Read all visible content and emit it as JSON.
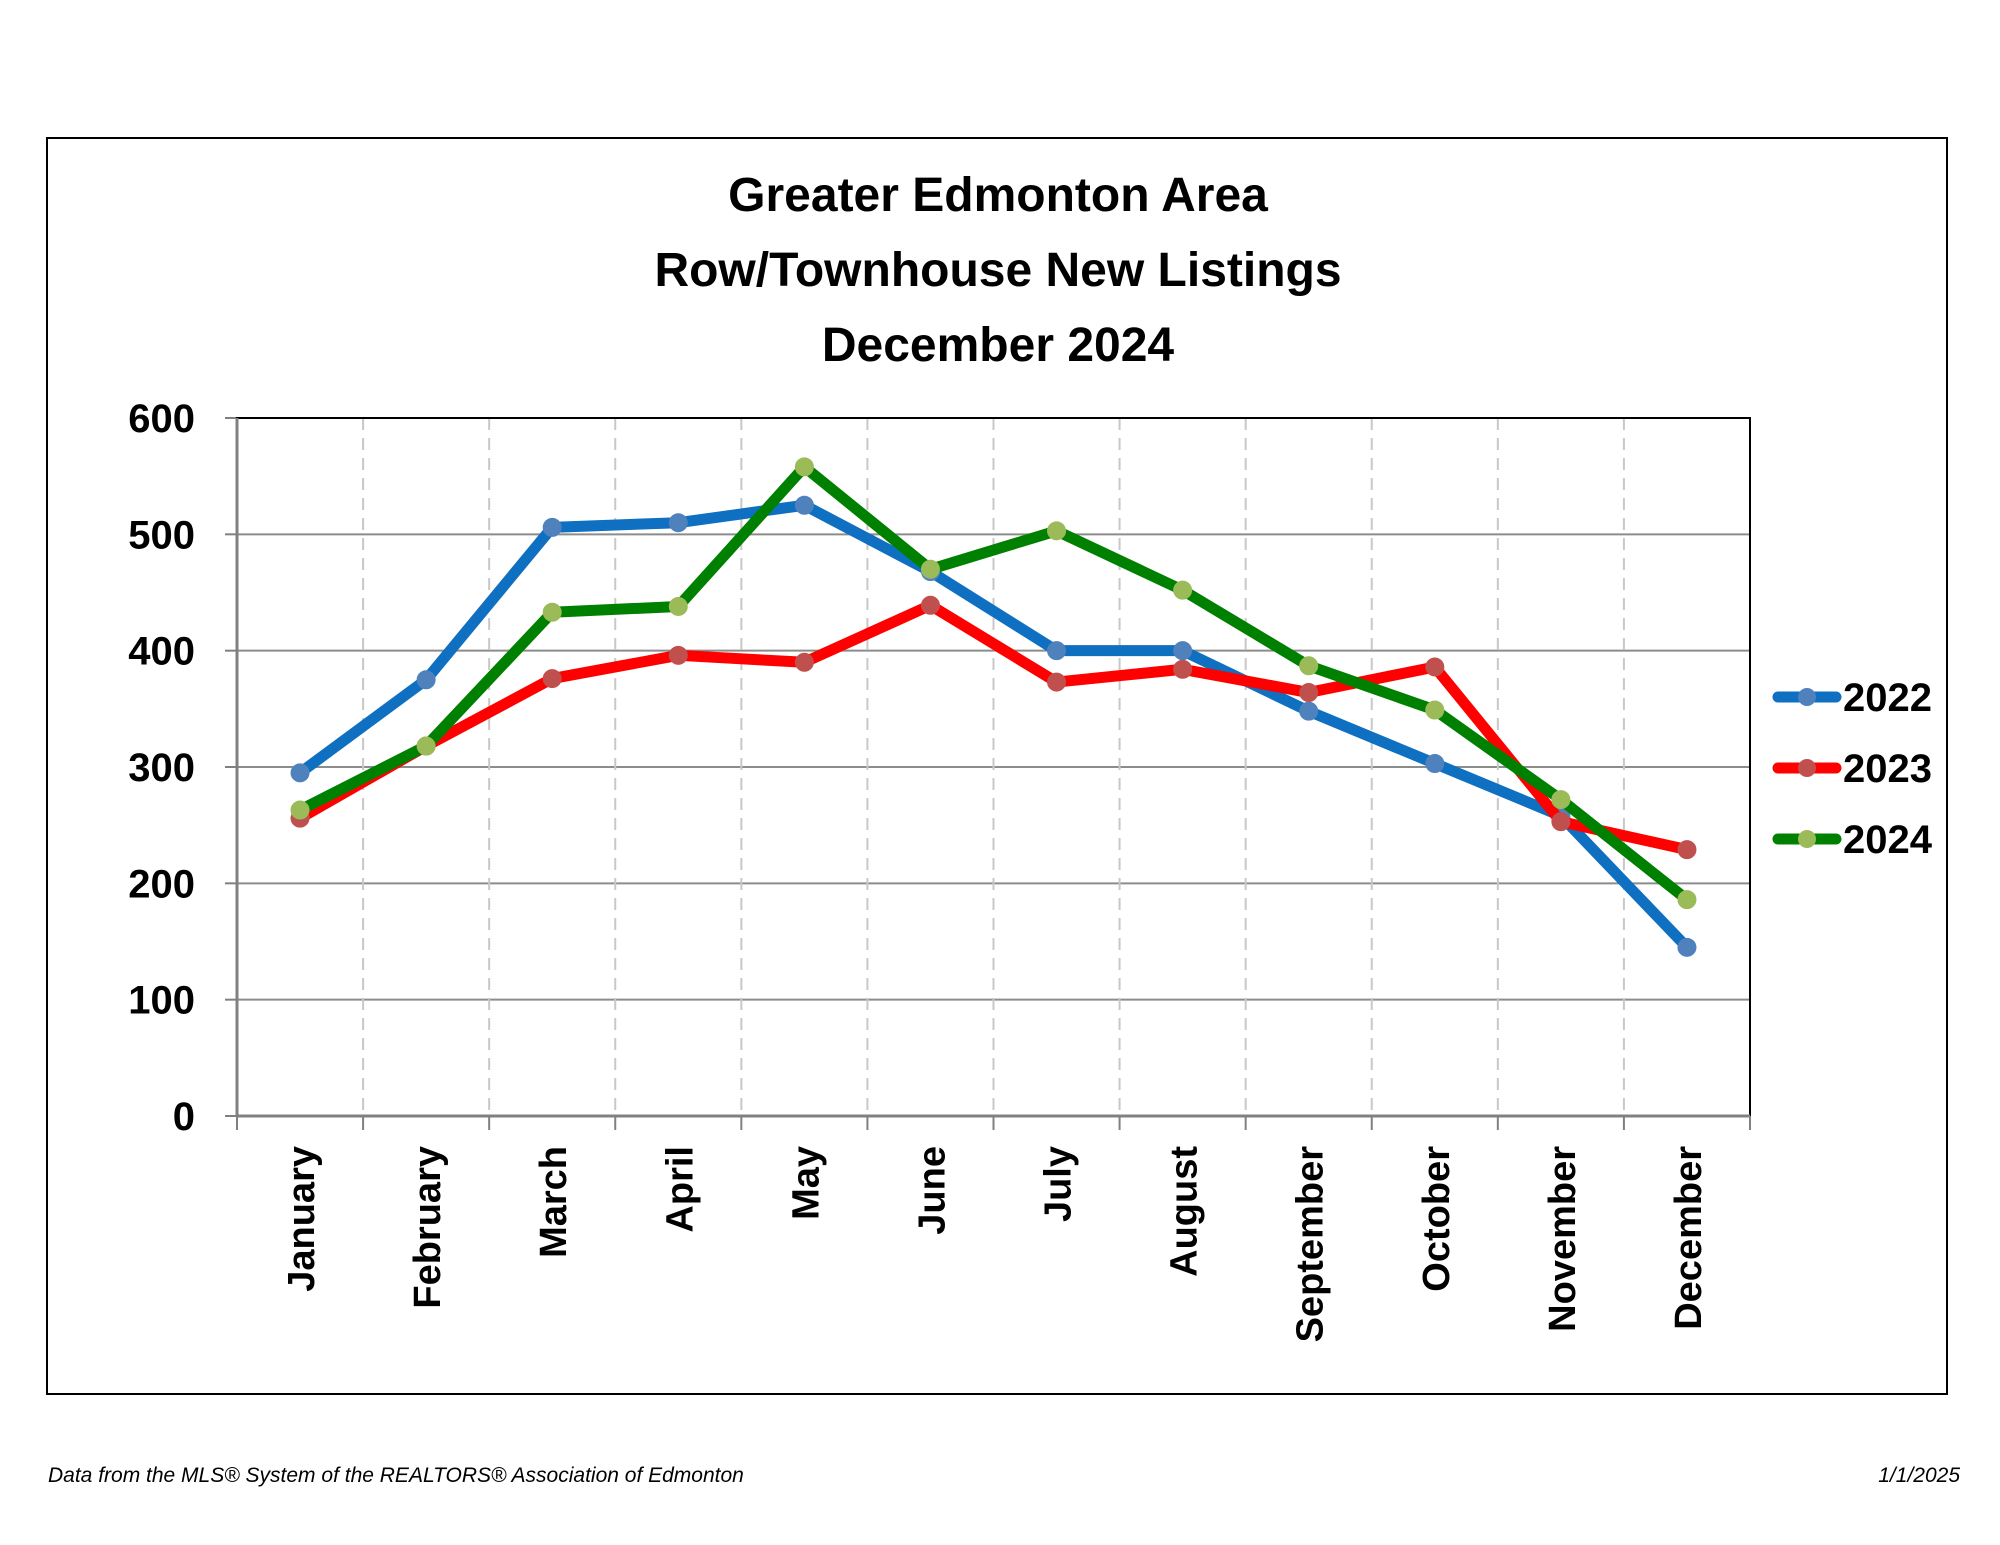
{
  "chart_data": {
    "type": "line",
    "title_lines": [
      "Greater Edmonton Area",
      "Row/Townhouse New Listings",
      "December 2024"
    ],
    "categories": [
      "January",
      "February",
      "March",
      "April",
      "May",
      "June",
      "July",
      "August",
      "September",
      "October",
      "November",
      "December"
    ],
    "ylim": [
      0,
      600
    ],
    "yticks": [
      "0",
      "100",
      "200",
      "300",
      "400",
      "500",
      "600"
    ],
    "grid": {
      "horizontal": "solid",
      "vertical": "dashed"
    },
    "legend_position": "right",
    "series": [
      {
        "name": "2022",
        "color": "#0f6fc0",
        "marker_color": "#4f81bd",
        "values": [
          295,
          375,
          506,
          510,
          525,
          468,
          400,
          400,
          348,
          303,
          258,
          145
        ]
      },
      {
        "name": "2023",
        "color": "#ff0000",
        "marker_color": "#c0504d",
        "values": [
          256,
          318,
          376,
          396,
          390,
          439,
          373,
          384,
          364,
          386,
          253,
          229
        ]
      },
      {
        "name": "2024",
        "color": "#008000",
        "marker_color": "#9bbb59",
        "values": [
          263,
          318,
          433,
          438,
          558,
          470,
          503,
          452,
          387,
          349,
          272,
          186
        ]
      }
    ]
  },
  "footer": {
    "source": "Data from the MLS® System of the REALTORS® Association of Edmonton",
    "date": "1/1/2025"
  }
}
